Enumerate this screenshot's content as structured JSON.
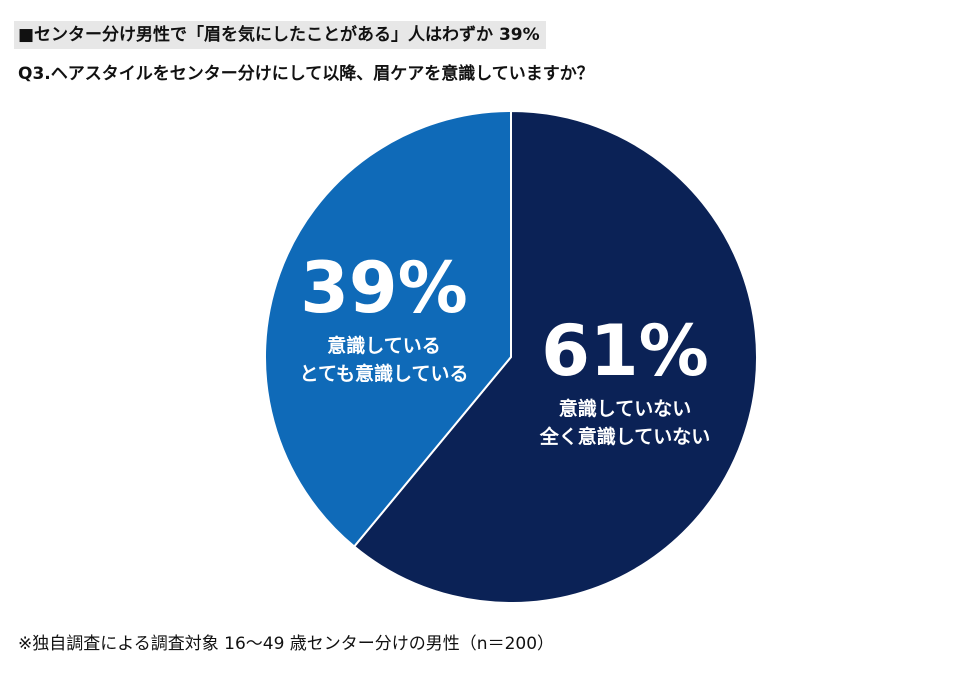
{
  "header": {
    "headline": "■センター分け男性で「眉を気にしたことがある」人はわずか 39%",
    "question": "Q3.ヘアスタイルをセンター分けにして以降、眉ケアを意識していますか？"
  },
  "footnote": "※独自調査による調査対象 16～49 歳センター分けの男性（n＝200）",
  "chart_data": {
    "type": "pie",
    "title": "Q3.ヘアスタイルをセンター分けにして以降、眉ケアを意識していますか？",
    "start_angle_deg": 0,
    "direction": "clockwise",
    "slices": [
      {
        "value": 61,
        "pct_label": "61%",
        "labels": [
          "意識していない",
          "全く意識していない"
        ],
        "color": "#0b2256"
      },
      {
        "value": 39,
        "pct_label": "39%",
        "labels": [
          "意識している",
          "とても意識している"
        ],
        "color": "#0f6ab8"
      }
    ],
    "border_color": "#ffffff"
  }
}
